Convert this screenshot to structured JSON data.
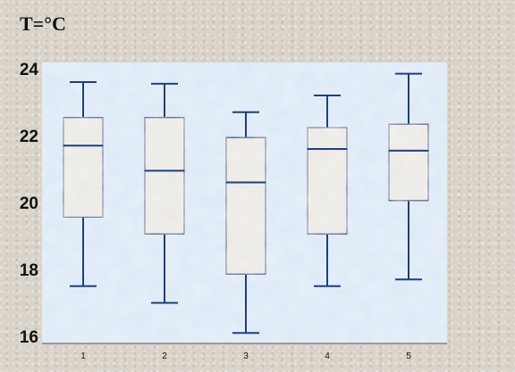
{
  "unit_label": "T=°C",
  "chart_data": {
    "type": "boxplot",
    "title": "",
    "xlabel": "",
    "ylabel": "",
    "ylim": [
      15.9,
      24.1
    ],
    "y_ticks": [
      16,
      18,
      20,
      22,
      24
    ],
    "categories": [
      "1",
      "2",
      "3",
      "4",
      "5"
    ],
    "boxes": [
      {
        "category": "1",
        "min": 17.5,
        "q1": 19.55,
        "median": 21.7,
        "q3": 22.55,
        "max": 23.6
      },
      {
        "category": "2",
        "min": 17.0,
        "q1": 19.05,
        "median": 20.95,
        "q3": 22.55,
        "max": 23.55
      },
      {
        "category": "3",
        "min": 16.1,
        "q1": 17.85,
        "median": 20.6,
        "q3": 21.95,
        "max": 22.7
      },
      {
        "category": "4",
        "min": 17.5,
        "q1": 19.05,
        "median": 21.6,
        "q3": 22.25,
        "max": 23.2
      },
      {
        "category": "5",
        "min": 17.7,
        "q1": 20.05,
        "median": 21.55,
        "q3": 22.35,
        "max": 23.85
      }
    ],
    "colors": {
      "stroke": "#1f3f7a",
      "box_fill": "#ebe8e4",
      "plot_bg": "#dbe8f6"
    },
    "grid": false
  }
}
